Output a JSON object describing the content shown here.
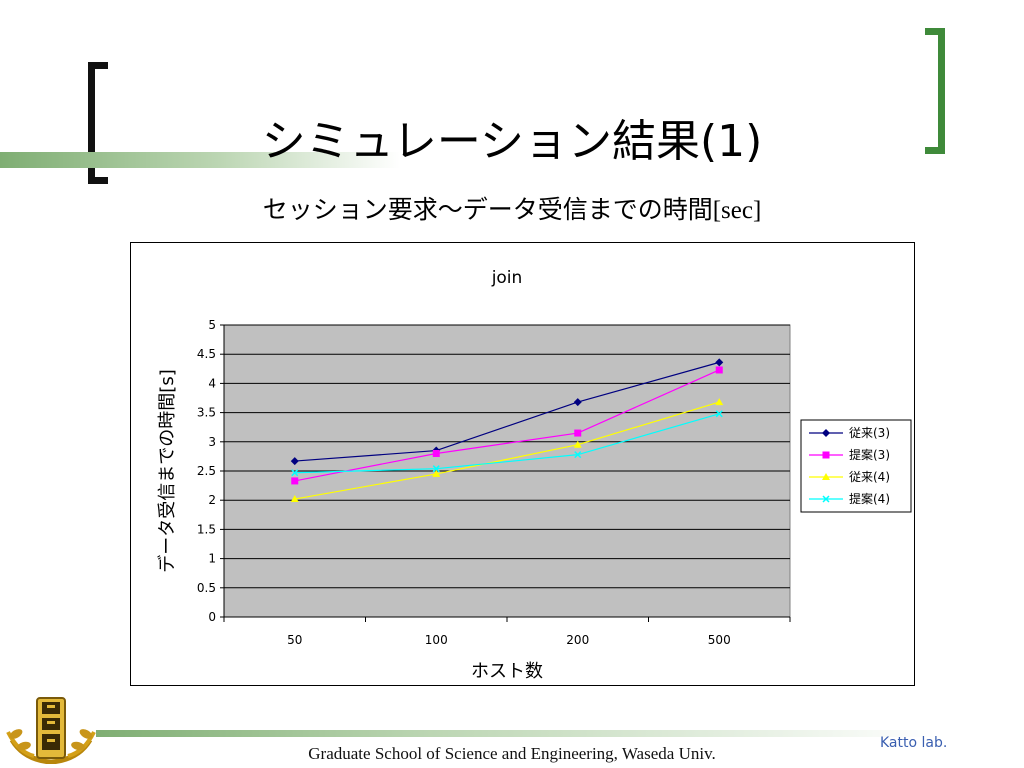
{
  "slide": {
    "title": "シミュレーション結果(1)",
    "subtitle_main": "セッション要求～データ受信までの時間",
    "subtitle_unit": "[sec]",
    "footer": "Graduate School of Science and Engineering, Waseda Univ.",
    "lab": "Katto lab."
  },
  "colors": {
    "bracket_left": "#111111",
    "bracket_right": "#3f8a3a",
    "accent_bar": "#7fae73",
    "plot_bg": "#c0c0c0",
    "lab_text": "#3a5fb0"
  },
  "chart_data": {
    "type": "line",
    "title": "join",
    "xlabel": "ホスト数",
    "ylabel": "データ受信までの時間[s]",
    "categories": [
      "50",
      "100",
      "200",
      "500"
    ],
    "ylim": [
      0,
      5
    ],
    "yticks": [
      "0",
      "0.5",
      "1",
      "1.5",
      "2",
      "2.5",
      "3",
      "3.5",
      "4",
      "4.5",
      "5"
    ],
    "grid": true,
    "legend_position": "right",
    "series": [
      {
        "name": "従来(3)",
        "values": [
          2.67,
          2.85,
          3.68,
          4.36
        ],
        "color": "#000080",
        "marker": "diamond"
      },
      {
        "name": "提案(3)",
        "values": [
          2.33,
          2.8,
          3.15,
          4.23
        ],
        "color": "#ff00ff",
        "marker": "square"
      },
      {
        "name": "従来(4)",
        "values": [
          2.02,
          2.45,
          2.95,
          3.68
        ],
        "color": "#ffff00",
        "marker": "triangle"
      },
      {
        "name": "提案(4)",
        "values": [
          2.47,
          2.54,
          2.78,
          3.48
        ],
        "color": "#00ffff",
        "marker": "x"
      }
    ]
  }
}
